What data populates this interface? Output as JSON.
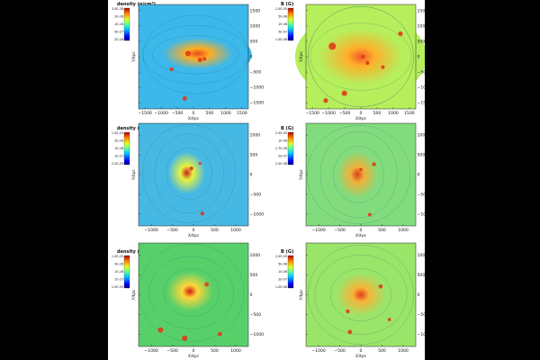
{
  "colors": {
    "background": "#000000",
    "sheet": "#ffffff"
  },
  "chart_data": [
    {
      "type": "heatmap",
      "title": "density (g/cm³)",
      "colorbar_labels": [
        "3.0E-28",
        "2E-26",
        "1E-26",
        "5E-27",
        "2E-28"
      ],
      "xlabel": "X/kpc",
      "ylabel": "Y/kpc",
      "xticks": [
        -1500,
        -1000,
        -500,
        0,
        500,
        1000,
        1500
      ],
      "yticks": [
        1500,
        1000,
        500,
        0,
        -500,
        -1000,
        -1500
      ],
      "xlim": [
        -1700,
        1700
      ],
      "ylim": [
        -1700,
        1700
      ],
      "colormap": "jet",
      "grid": false
    },
    {
      "type": "heatmap",
      "title": "B (G)",
      "colorbar_labels": [
        "1.0E-05",
        "5E-06",
        "1E-06",
        "5E-07",
        "1.0E-08"
      ],
      "xlabel": "X/kpc",
      "ylabel": "Y/kpc",
      "xticks": [
        -1500,
        -1000,
        -500,
        0,
        500,
        1000,
        1500
      ],
      "yticks": [
        1500,
        1000,
        500,
        0,
        -500,
        -1000,
        -1500
      ],
      "xlim": [
        -1700,
        1700
      ],
      "ylim": [
        -1700,
        1700
      ],
      "colormap": "jet",
      "grid": false
    },
    {
      "type": "heatmap",
      "title": "density (g/cm³)",
      "colorbar_labels": [
        "1.0E-25",
        "2E-26",
        "1E-26",
        "1E-27",
        "2.0E-29"
      ],
      "xlabel": "X/kpc",
      "ylabel": "Y/kpc",
      "xticks": [
        -1000,
        -500,
        0,
        500,
        1000
      ],
      "yticks": [
        1000,
        500,
        0,
        -500,
        -1000
      ],
      "xlim": [
        -1300,
        1300
      ],
      "ylim": [
        -1300,
        1300
      ],
      "colormap": "jet",
      "grid": false
    },
    {
      "type": "heatmap",
      "title": "B (G)",
      "colorbar_labels": [
        "2.0E-05",
        "1E-06",
        "1.7E-06",
        "2E-07",
        "2.0E-08"
      ],
      "xlabel": "X/kpc",
      "ylabel": "Y/kpc",
      "xticks": [
        -1000,
        -500,
        0,
        500,
        1000
      ],
      "yticks": [
        1000,
        500,
        0,
        -500,
        -1000
      ],
      "xlim": [
        -1300,
        1300
      ],
      "ylim": [
        -1300,
        1300
      ],
      "colormap": "jet",
      "grid": false
    },
    {
      "type": "heatmap",
      "title": "density (g/cm³)",
      "colorbar_labels": [
        "1.0E-25",
        "2E-26",
        "1E-26",
        "1E-27",
        "1.0E-29"
      ],
      "xlabel": "X/kpc",
      "ylabel": "Y/kpc",
      "xticks": [
        -1000,
        -500,
        0,
        500,
        1000
      ],
      "yticks": [
        1000,
        500,
        0,
        -500,
        -1000
      ],
      "xlim": [
        -1300,
        1300
      ],
      "ylim": [
        -1300,
        1300
      ],
      "colormap": "jet",
      "grid": false
    },
    {
      "type": "heatmap",
      "title": "B (G)",
      "colorbar_labels": [
        "2.0E-05",
        "5E-06",
        "1E-06",
        "2E-07",
        "1.0E-08"
      ],
      "xlabel": "X/kpc",
      "ylabel": "Y/kpc",
      "xticks": [
        -1000,
        -500,
        0,
        500,
        1000
      ],
      "yticks": [
        1000,
        500,
        0,
        -500,
        -1000
      ],
      "xlim": [
        -1300,
        1300
      ],
      "ylim": [
        -1300,
        1300
      ],
      "colormap": "jet",
      "grid": false
    }
  ]
}
